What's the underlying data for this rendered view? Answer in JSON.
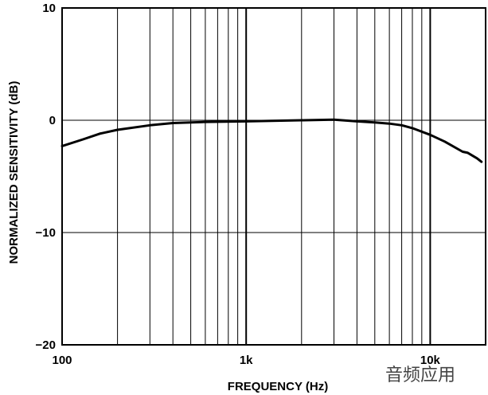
{
  "chart_data": {
    "type": "line",
    "title": "",
    "xlabel": "FREQUENCY (Hz)",
    "ylabel": "NORMALIZED SENSITIVITY (dB)",
    "x_scale": "log",
    "xlim": [
      100,
      20000
    ],
    "ylim": [
      -20,
      10
    ],
    "grid": true,
    "x_tick_labels": [
      {
        "value": 100,
        "label": "100"
      },
      {
        "value": 1000,
        "label": "1k"
      },
      {
        "value": 10000,
        "label": "10k"
      }
    ],
    "y_tick_labels": [
      {
        "value": 10,
        "label": "10"
      },
      {
        "value": 0,
        "label": "0"
      },
      {
        "value": -10,
        "label": "−10"
      },
      {
        "value": -20,
        "label": "−20"
      }
    ],
    "series": [
      {
        "color": "#000000",
        "points": [
          {
            "x": 100,
            "y": -2.3
          },
          {
            "x": 130,
            "y": -1.7
          },
          {
            "x": 160,
            "y": -1.2
          },
          {
            "x": 200,
            "y": -0.85
          },
          {
            "x": 300,
            "y": -0.45
          },
          {
            "x": 400,
            "y": -0.25
          },
          {
            "x": 600,
            "y": -0.15
          },
          {
            "x": 1000,
            "y": -0.1
          },
          {
            "x": 2000,
            "y": 0.0
          },
          {
            "x": 3000,
            "y": 0.05
          },
          {
            "x": 4000,
            "y": -0.1
          },
          {
            "x": 5000,
            "y": -0.2
          },
          {
            "x": 6000,
            "y": -0.3
          },
          {
            "x": 7000,
            "y": -0.45
          },
          {
            "x": 8000,
            "y": -0.7
          },
          {
            "x": 10000,
            "y": -1.3
          },
          {
            "x": 12000,
            "y": -1.9
          },
          {
            "x": 15000,
            "y": -2.8
          },
          {
            "x": 16000,
            "y": -2.9
          },
          {
            "x": 18000,
            "y": -3.4
          },
          {
            "x": 19000,
            "y": -3.7
          }
        ]
      }
    ]
  },
  "watermark": {
    "text": "音频应用"
  }
}
